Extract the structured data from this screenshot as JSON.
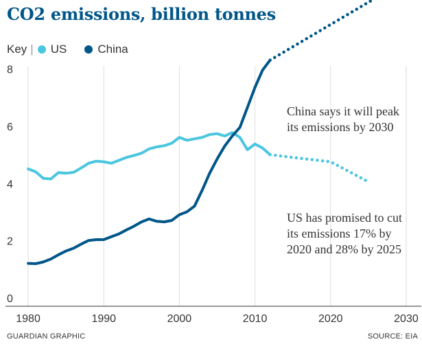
{
  "title": "CO2 emissions, billion tonnes",
  "key": {
    "label": "Key",
    "separator": "|",
    "items": [
      {
        "label": "US",
        "color": "#4bc6df"
      },
      {
        "label": "China",
        "color": "#005689"
      }
    ]
  },
  "footer": {
    "left": "GUARDIAN GRAPHIC",
    "right": "SOURCE: EIA"
  },
  "chart_data": {
    "type": "line",
    "title": "CO2 emissions, billion tonnes",
    "xlabel": "",
    "ylabel": "",
    "xlim": [
      1977,
      2032
    ],
    "ylim": [
      0,
      9.5
    ],
    "x_ticks": [
      1980,
      1990,
      2000,
      2010,
      2020,
      2030
    ],
    "y_ticks": [
      0,
      2,
      4,
      6,
      8
    ],
    "grid": "vertical",
    "legend_position": "top-left",
    "series": [
      {
        "name": "US",
        "color": "#4bc6df",
        "x": [
          1980,
          1981,
          1982,
          1983,
          1984,
          1985,
          1986,
          1987,
          1988,
          1989,
          1990,
          1991,
          1992,
          1993,
          1994,
          1995,
          1996,
          1997,
          1998,
          1999,
          2000,
          2001,
          2002,
          2003,
          2004,
          2005,
          2006,
          2007,
          2008,
          2009,
          2010,
          2011,
          2012
        ],
        "y": [
          4.75,
          4.65,
          4.42,
          4.4,
          4.62,
          4.6,
          4.63,
          4.78,
          4.95,
          5.02,
          5.0,
          4.95,
          5.05,
          5.15,
          5.22,
          5.3,
          5.45,
          5.52,
          5.56,
          5.65,
          5.85,
          5.75,
          5.8,
          5.85,
          5.95,
          5.98,
          5.9,
          6.02,
          5.85,
          5.42,
          5.62,
          5.48,
          5.25
        ]
      },
      {
        "name": "US projection",
        "color": "#4bc6df",
        "dashed": true,
        "x": [
          2012,
          2015,
          2020,
          2025
        ],
        "y": [
          5.25,
          5.15,
          5.0,
          4.3
        ]
      },
      {
        "name": "China",
        "color": "#005689",
        "x": [
          1980,
          1981,
          1982,
          1983,
          1984,
          1985,
          1986,
          1987,
          1988,
          1989,
          1990,
          1991,
          1992,
          1993,
          1994,
          1995,
          1996,
          1997,
          1998,
          1999,
          2000,
          2001,
          2002,
          2003,
          2004,
          2005,
          2006,
          2007,
          2008,
          2009,
          2010,
          2011,
          2012
        ],
        "y": [
          1.45,
          1.44,
          1.5,
          1.6,
          1.75,
          1.88,
          1.98,
          2.12,
          2.25,
          2.28,
          2.28,
          2.38,
          2.48,
          2.62,
          2.75,
          2.9,
          3.0,
          2.92,
          2.9,
          2.95,
          3.15,
          3.25,
          3.45,
          4.0,
          4.6,
          5.1,
          5.55,
          5.9,
          6.2,
          6.9,
          7.6,
          8.2,
          8.55
        ]
      },
      {
        "name": "China projection",
        "color": "#005689",
        "dashed": true,
        "x": [
          2012,
          2030
        ],
        "y": [
          8.55,
          11.35
        ]
      }
    ],
    "annotations": [
      {
        "series": "China",
        "lines": [
          "China says it will peak",
          "its emissions by 2030"
        ]
      },
      {
        "series": "US",
        "lines": [
          "US has promised to cut",
          "its emissions 17% by",
          "2020 and 28% by 2025"
        ]
      }
    ]
  }
}
